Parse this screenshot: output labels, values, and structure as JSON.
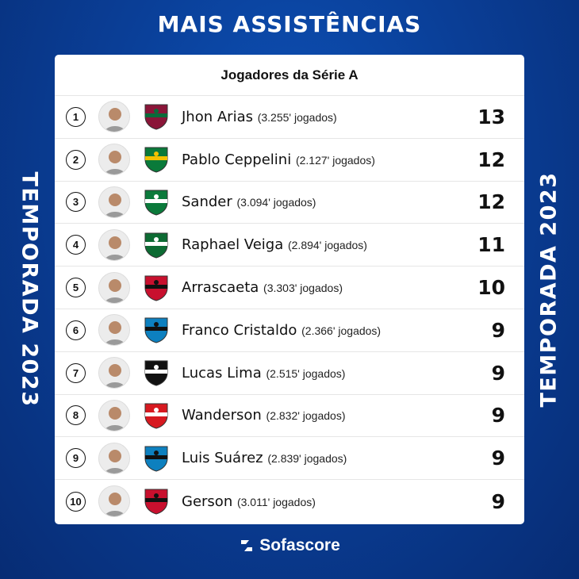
{
  "title": "MAIS ASSISTÊNCIAS",
  "side_label": "TEMPORADA 2023",
  "table": {
    "header": "Jogadores da Série A",
    "rows": [
      {
        "rank": "1",
        "name": "Jhon Arias",
        "minutes": "(3.255' jogados)",
        "value": "13",
        "club_colors": [
          "#8a1538",
          "#0a6b3a"
        ]
      },
      {
        "rank": "2",
        "name": "Pablo Ceppelini",
        "minutes": "(2.127' jogados)",
        "value": "12",
        "club_colors": [
          "#0a7a3a",
          "#f2c200"
        ]
      },
      {
        "rank": "3",
        "name": "Sander",
        "minutes": "(3.094' jogados)",
        "value": "12",
        "club_colors": [
          "#0b7a3b",
          "#ffffff"
        ]
      },
      {
        "rank": "4",
        "name": "Raphael Veiga",
        "minutes": "(2.894' jogados)",
        "value": "11",
        "club_colors": [
          "#0d6b33",
          "#ffffff"
        ]
      },
      {
        "rank": "5",
        "name": "Arrascaeta",
        "minutes": "(3.303' jogados)",
        "value": "10",
        "club_colors": [
          "#c8102e",
          "#111111"
        ]
      },
      {
        "rank": "6",
        "name": "Franco Cristaldo",
        "minutes": "(2.366' jogados)",
        "value": "9",
        "club_colors": [
          "#0d80bf",
          "#111111"
        ]
      },
      {
        "rank": "7",
        "name": "Lucas Lima",
        "minutes": "(2.515' jogados)",
        "value": "9",
        "club_colors": [
          "#111111",
          "#ffffff"
        ]
      },
      {
        "rank": "8",
        "name": "Wanderson",
        "minutes": "(2.832' jogados)",
        "value": "9",
        "club_colors": [
          "#d71920",
          "#ffffff"
        ]
      },
      {
        "rank": "9",
        "name": "Luis Suárez",
        "minutes": "(2.839' jogados)",
        "value": "9",
        "club_colors": [
          "#0d80bf",
          "#111111"
        ]
      },
      {
        "rank": "10",
        "name": "Gerson",
        "minutes": "(3.011' jogados)",
        "value": "9",
        "club_colors": [
          "#c8102e",
          "#111111"
        ]
      }
    ]
  },
  "brand": {
    "name": "Sofascore",
    "icon": "sofascore-logo-icon"
  },
  "colors": {
    "background": "#0a3f98",
    "card": "#ffffff"
  }
}
